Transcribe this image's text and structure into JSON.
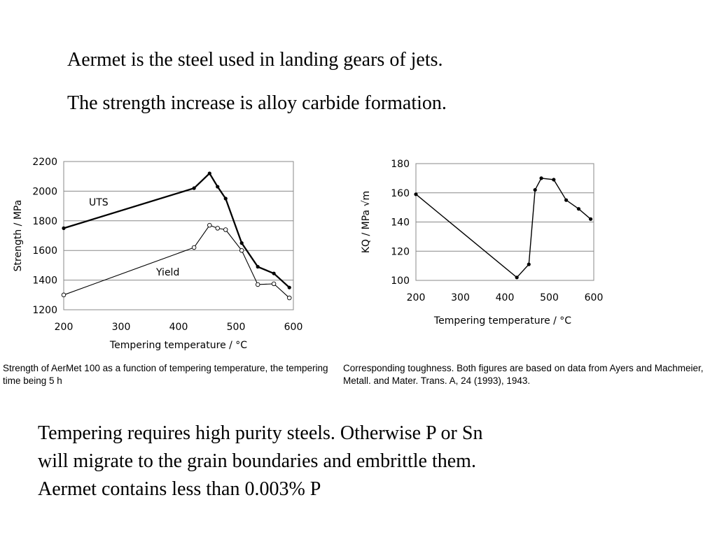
{
  "text": {
    "line1": "Aermet is the steel used in landing gears of jets.",
    "line2": "The strength increase is alloy carbide formation.",
    "bottom": [
      "Tempering requires high purity steels. Otherwise P or Sn",
      "will migrate to the grain boundaries and embrittle them.",
      "Aermet contains less than 0.003% P"
    ],
    "caption_left": "Strength of AerMet 100 as a function of tempering temperature, the tempering time being 5 h",
    "caption_right": "Corresponding toughness. Both figures are based on data from Ayers and Machmeier, Metall. and Mater. Trans. A, 24 (1993), 1943."
  },
  "chart_data": [
    {
      "type": "line",
      "xlabel": "Tempering temperature / °C",
      "ylabel": "Strength / MPa",
      "xlim": [
        200,
        600
      ],
      "ylim": [
        1200,
        2200
      ],
      "xticks": [
        200,
        300,
        400,
        500,
        600
      ],
      "yticks": [
        1200,
        1400,
        1600,
        1800,
        2000,
        2200
      ],
      "grid": true,
      "series": [
        {
          "name": "UTS",
          "x": [
            200,
            427,
            454,
            468,
            482,
            510,
            538,
            566,
            593
          ],
          "y": [
            1750,
            2020,
            2120,
            2030,
            1950,
            1650,
            1490,
            1445,
            1350
          ],
          "marker": "filled"
        },
        {
          "name": "Yield",
          "x": [
            200,
            427,
            454,
            468,
            482,
            510,
            538,
            566,
            593
          ],
          "y": [
            1300,
            1620,
            1770,
            1750,
            1740,
            1600,
            1370,
            1375,
            1280
          ],
          "marker": "open"
        }
      ]
    },
    {
      "type": "line",
      "xlabel": "Tempering temperature / °C",
      "ylabel": "KQ / MPa √m",
      "xlim": [
        200,
        600
      ],
      "ylim": [
        100,
        180
      ],
      "xticks": [
        200,
        300,
        400,
        500,
        600
      ],
      "yticks": [
        100,
        120,
        140,
        160,
        180
      ],
      "grid": true,
      "series": [
        {
          "x": [
            200,
            427,
            454,
            468,
            482,
            510,
            538,
            566,
            593
          ],
          "y": [
            159,
            102,
            111,
            162,
            170,
            169,
            155,
            149,
            142
          ],
          "marker": "filled"
        }
      ]
    }
  ]
}
